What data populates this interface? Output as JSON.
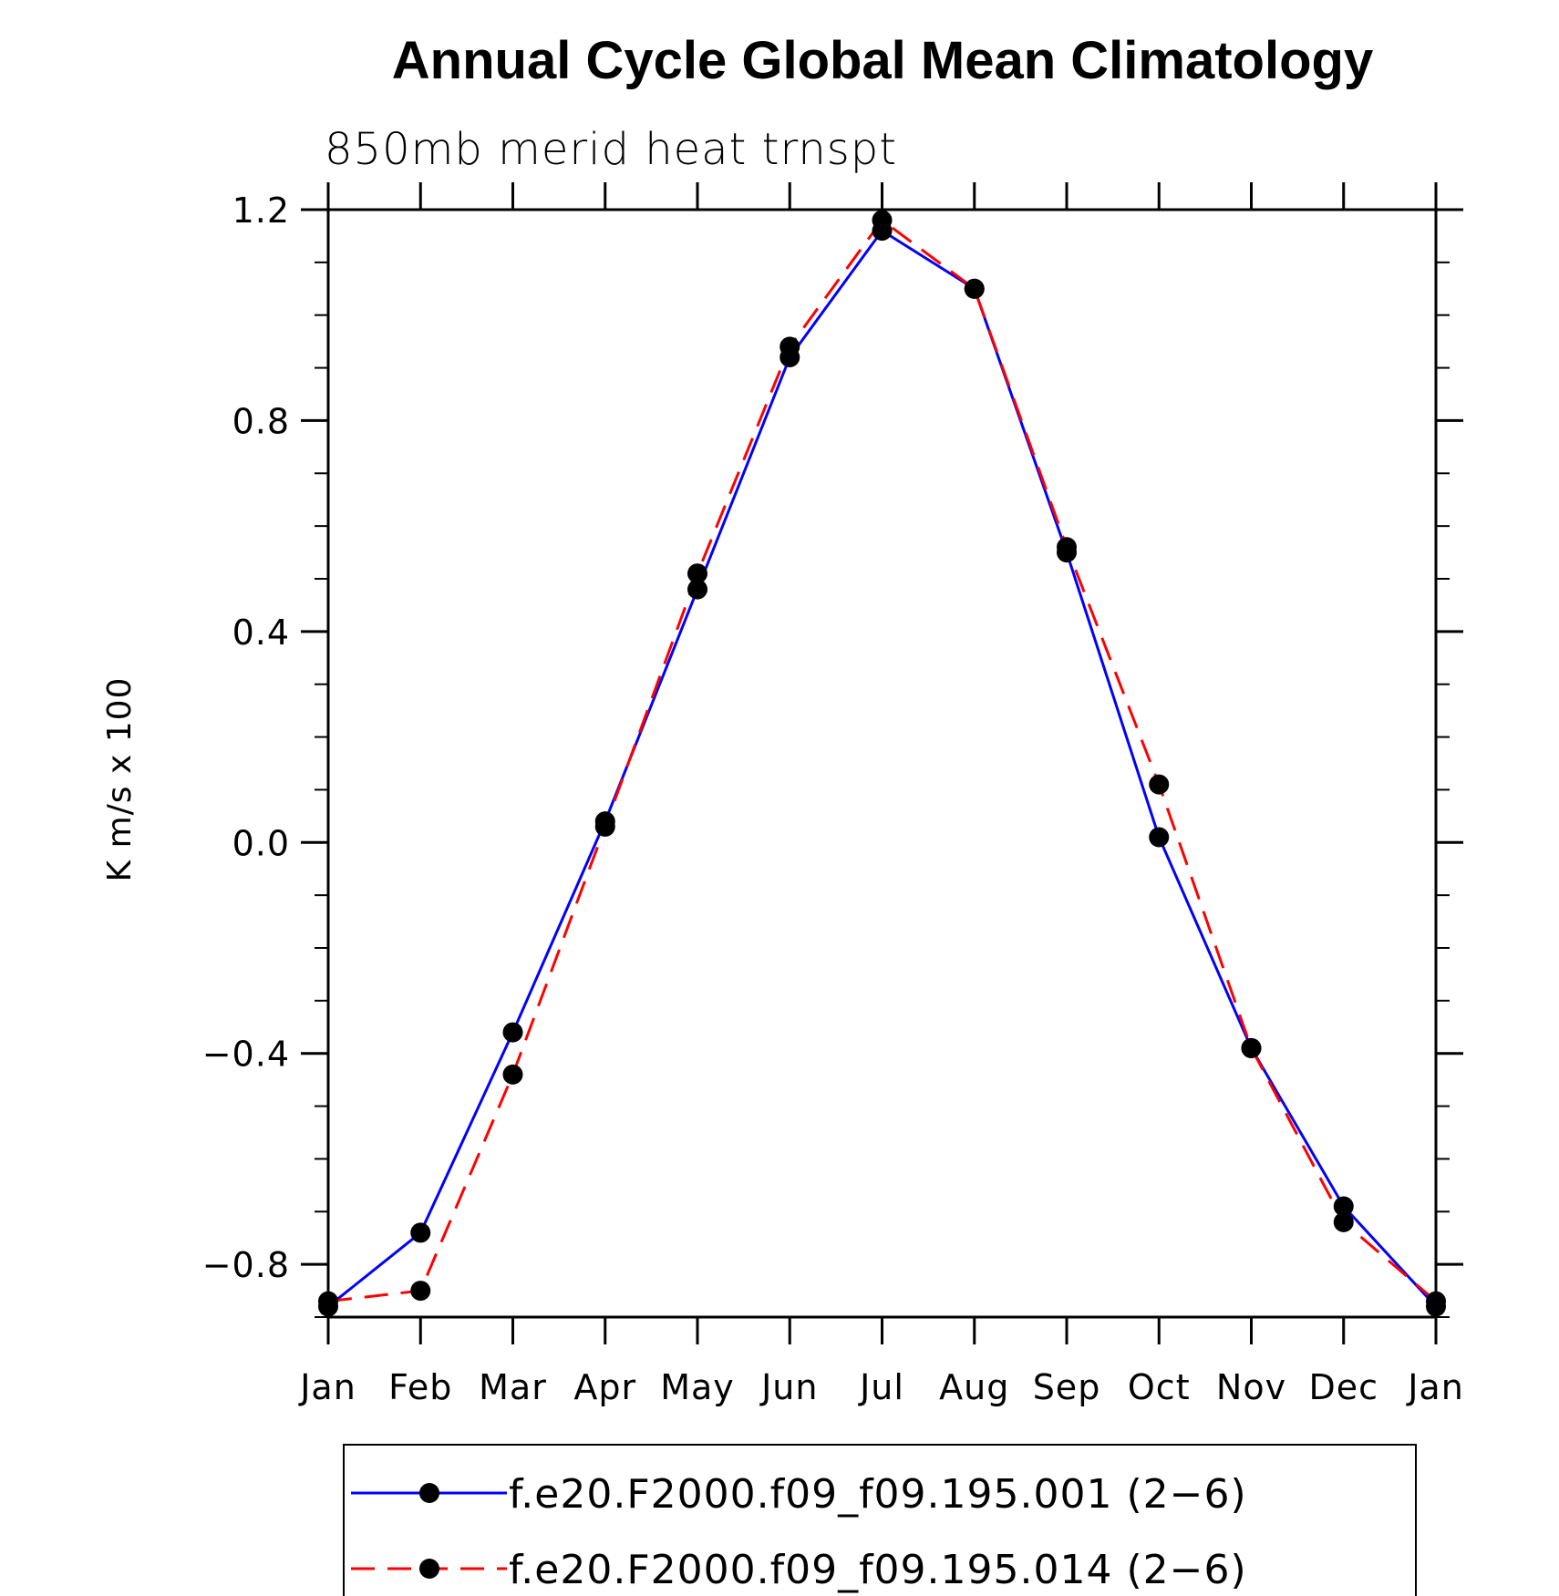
{
  "chart_data": {
    "type": "line",
    "title": "Annual Cycle Global Mean Climatology",
    "subtitle": "850mb merid heat trnspt",
    "xlabel": "",
    "ylabel": "K m/s x 100",
    "categories": [
      "Jan",
      "Feb",
      "Mar",
      "Apr",
      "May",
      "Jun",
      "Jul",
      "Aug",
      "Sep",
      "Oct",
      "Nov",
      "Dec",
      "Jan"
    ],
    "ylim": [
      -0.9,
      1.2
    ],
    "yticks": [
      -0.8,
      -0.4,
      0.0,
      0.4,
      0.8,
      1.2
    ],
    "ytick_labels": [
      "−0.8",
      "−0.4",
      "0.0",
      "0.4",
      "0.8",
      "1.2"
    ],
    "grid": false,
    "legend_position": "bottom",
    "series": [
      {
        "name": "f.e20.F2000.f09_f09.195.001 (2−6)",
        "color": "#0000ff",
        "dash": "solid",
        "marker": "filled-circle",
        "values": [
          -0.88,
          -0.74,
          -0.36,
          0.04,
          0.48,
          0.92,
          1.16,
          1.05,
          0.55,
          0.01,
          -0.39,
          -0.69,
          -0.88
        ]
      },
      {
        "name": "f.e20.F2000.f09_f09.195.014 (2−6)",
        "color": "#ff0000",
        "dash": "dashed",
        "marker": "filled-circle",
        "values": [
          -0.87,
          -0.85,
          -0.44,
          0.03,
          0.51,
          0.94,
          1.18,
          1.05,
          0.56,
          0.11,
          -0.39,
          -0.72,
          -0.87
        ]
      }
    ]
  }
}
